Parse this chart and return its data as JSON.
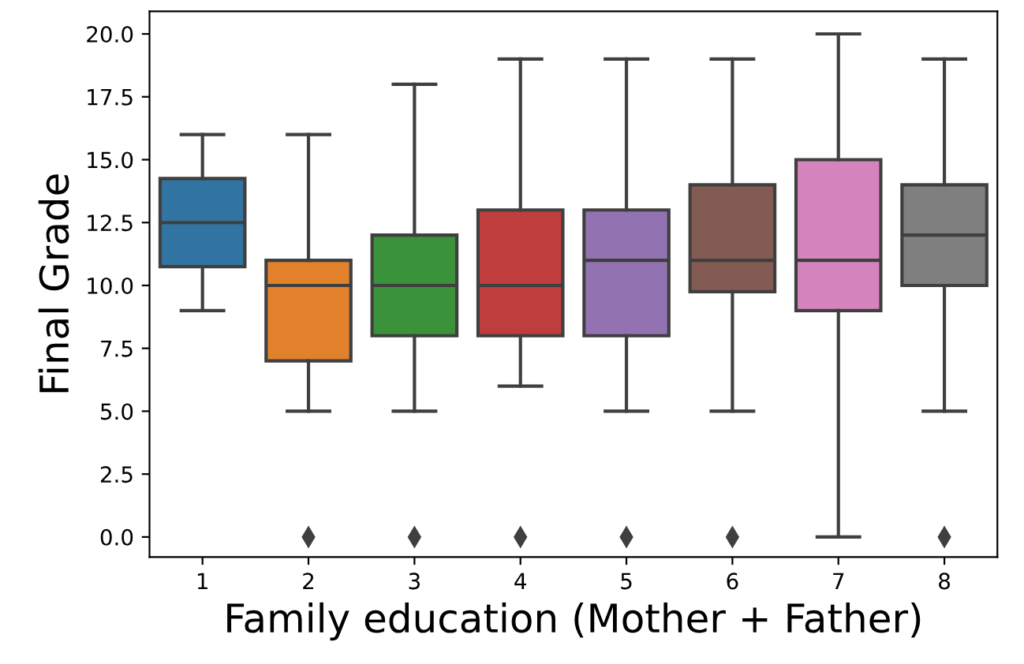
{
  "chart_data": {
    "type": "box",
    "xlabel": "Family education (Mother + Father)",
    "ylabel": "Final Grade",
    "categories": [
      "1",
      "2",
      "3",
      "4",
      "5",
      "6",
      "7",
      "8"
    ],
    "colors": [
      "#3274a1",
      "#e1812c",
      "#3a923a",
      "#c03d3e",
      "#9372b2",
      "#845b53",
      "#d684bd",
      "#7f7f7f"
    ],
    "boxes": [
      {
        "low": 9,
        "q1": 10.75,
        "median": 12.5,
        "q3": 14.25,
        "high": 16
      },
      {
        "low": 5,
        "q1": 7,
        "median": 10,
        "q3": 11,
        "high": 16,
        "outliers": [
          0
        ]
      },
      {
        "low": 5,
        "q1": 8,
        "median": 10,
        "q3": 12,
        "high": 18,
        "outliers": [
          0
        ]
      },
      {
        "low": 6,
        "q1": 8,
        "median": 10,
        "q3": 13,
        "high": 19,
        "outliers": [
          0
        ]
      },
      {
        "low": 5,
        "q1": 8,
        "median": 11,
        "q3": 13,
        "high": 19,
        "outliers": [
          0
        ]
      },
      {
        "low": 5,
        "q1": 9.75,
        "median": 11,
        "q3": 14,
        "high": 19,
        "outliers": [
          0
        ]
      },
      {
        "low": 0,
        "q1": 9,
        "median": 11,
        "q3": 15,
        "high": 20
      },
      {
        "low": 5,
        "q1": 10,
        "median": 12,
        "q3": 14,
        "high": 19,
        "outliers": [
          0
        ]
      }
    ],
    "ylim": [
      -0.8,
      20.9
    ],
    "yticks": [
      {
        "value": 0,
        "label": "0.0"
      },
      {
        "value": 2.5,
        "label": "2.5"
      },
      {
        "value": 5,
        "label": "5.0"
      },
      {
        "value": 7.5,
        "label": "7.5"
      },
      {
        "value": 10,
        "label": "10.0"
      },
      {
        "value": 12.5,
        "label": "12.5"
      },
      {
        "value": 15,
        "label": "15.0"
      },
      {
        "value": 17.5,
        "label": "17.5"
      },
      {
        "value": 20,
        "label": "20.0"
      }
    ],
    "grid": false
  }
}
